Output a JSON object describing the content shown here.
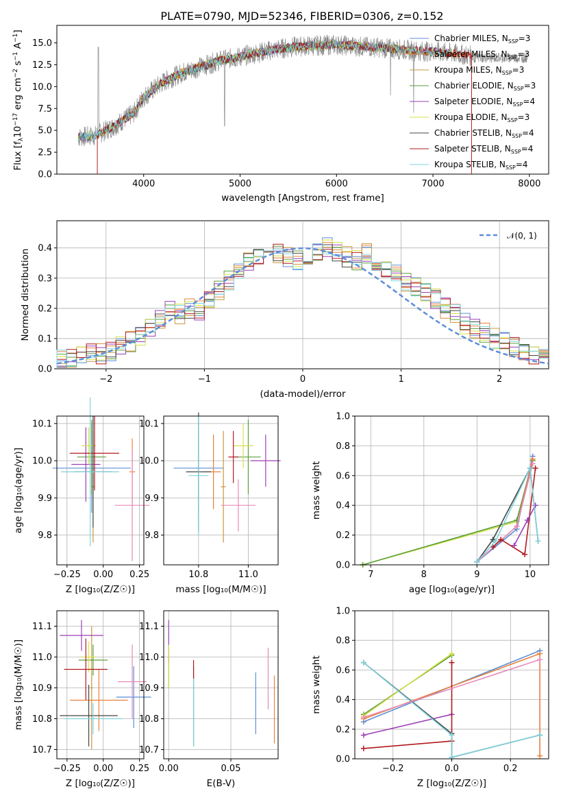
{
  "title": "PLATE=0790, MJD=52346, FIBERID=0306, z=0.152",
  "colors": {
    "c1": "#5b8ed8",
    "c2": "#e8813a",
    "c3": "#c8963c",
    "c4": "#5a9e3c",
    "c5": "#9b3fb5",
    "c6": "#d6e04a",
    "c7": "#444444",
    "c8": "#b0191f",
    "c9": "#7fd3dc",
    "gray": "#888888",
    "grid": "#b0b0b0",
    "pink": "#e68ab8"
  },
  "panels": {
    "spectrum": {
      "xlabel": "wavelength [Angstrom, rest frame]",
      "ylabel_main": "Flux [f",
      "ylabel_sub": "λ",
      "ylabel_rest": "10",
      "ylabel_exp": "−17",
      "ylabel_tail": " erg cm",
      "ylabel_exp2": "−2",
      "ylabel_tail2": " s",
      "ylabel_exp3": "−1",
      "ylabel_tail3": " A",
      "ylabel_exp4": "−1",
      "ylabel_end": "]",
      "xticks": [
        "4000",
        "5000",
        "6000",
        "7000",
        "8000"
      ],
      "yticks": [
        "0.0",
        "2.5",
        "5.0",
        "7.5",
        "10.0",
        "12.5",
        "15.0"
      ]
    },
    "hist": {
      "xlabel": "(data-model)/error",
      "ylabel": "Normed distribution",
      "legend": "𝒩(0, 1)",
      "xticks": [
        "−2",
        "−1",
        "0",
        "1",
        "2"
      ],
      "yticks": [
        "0.0",
        "0.1",
        "0.2",
        "0.3",
        "0.4"
      ]
    },
    "z_age": {
      "xlabel": "Z [log₁₀(Z/Z☉)]",
      "ylabel": "age  [log₁₀(age/yr)]",
      "xticks": [
        "−0.25",
        "0.00",
        "0.25"
      ],
      "yticks": [
        "9.8",
        "9.9",
        "10.0",
        "10.1"
      ]
    },
    "mass_age": {
      "xlabel": "mass [log₁₀(M/M☉)]",
      "xticks": [
        "10.8",
        "11.0"
      ],
      "yticks": [
        "9.8",
        "9.9",
        "10.0",
        "10.1"
      ]
    },
    "age_weight": {
      "xlabel": "age  [log₁₀(age/yr)]",
      "ylabel": "mass weight",
      "xticks": [
        "7",
        "8",
        "9",
        "10"
      ],
      "yticks": [
        "0.0",
        "0.2",
        "0.4",
        "0.6",
        "0.8",
        "1.0"
      ]
    },
    "z_mass": {
      "xlabel": "Z [log₁₀(Z/Z☉)]",
      "ylabel": "mass [log₁₀(M/M☉)]",
      "xticks": [
        "−0.25",
        "0.00",
        "0.25"
      ],
      "yticks": [
        "10.7",
        "10.8",
        "10.9",
        "11.0",
        "11.1"
      ]
    },
    "ebv_mass": {
      "xlabel": "E(B-V)",
      "xticks": [
        "0.00",
        "0.05"
      ],
      "yticks": [
        "10.7",
        "10.8",
        "10.9",
        "11.0",
        "11.1"
      ]
    },
    "z_weight": {
      "xlabel": "Z [log₁₀(Z/Z☉)]",
      "ylabel": "mass weight",
      "xticks": [
        "−0.2",
        "0.0",
        "0.2"
      ],
      "yticks": [
        "0.0",
        "0.2",
        "0.4",
        "0.6",
        "0.8",
        "1.0"
      ]
    }
  },
  "legend_models": [
    {
      "name": "Chabrier MILES, N",
      "nssp": "3",
      "color": "c1"
    },
    {
      "name": "Salpeter MILES, N",
      "nssp": "3",
      "color": "c2"
    },
    {
      "name": "Kroupa MILES, N",
      "nssp": "3",
      "color": "c3"
    },
    {
      "name": "Chabrier ELODIE, N",
      "nssp": "3",
      "color": "c4"
    },
    {
      "name": "Salpeter ELODIE, N",
      "nssp": "4",
      "color": "c5"
    },
    {
      "name": "Kroupa ELODIE, N",
      "nssp": "3",
      "color": "c6"
    },
    {
      "name": "Chabrier STELIB, N",
      "nssp": "4",
      "color": "c7"
    },
    {
      "name": "Salpeter STELIB, N",
      "nssp": "4",
      "color": "c8"
    },
    {
      "name": "Kroupa STELIB, N",
      "nssp": "4",
      "color": "c9"
    }
  ],
  "legend_sub": "SSP",
  "chart_data": [
    {
      "type": "line",
      "id": "spectrum",
      "xlim": [
        3100,
        8200
      ],
      "ylim": [
        0,
        17
      ],
      "continuum_x": [
        3300,
        3500,
        3700,
        3900,
        4000,
        4200,
        4400,
        4600,
        4800,
        5000,
        5200,
        5400,
        5600,
        5800,
        6000,
        6200,
        6400,
        6600,
        6800,
        7000,
        7200,
        7400
      ],
      "continuum_y": [
        4.2,
        4.4,
        5.5,
        7.0,
        8.8,
        10.5,
        11.6,
        12.3,
        13.0,
        13.4,
        13.9,
        14.3,
        14.6,
        14.7,
        14.8,
        14.6,
        14.5,
        14.3,
        14.1,
        14.0,
        13.8,
        13.5
      ]
    },
    {
      "type": "histogram",
      "id": "residuals",
      "bin_width": 0.1,
      "x_start": -2.5,
      "counts": [
        0.03,
        0.03,
        0.04,
        0.05,
        0.05,
        0.06,
        0.08,
        0.09,
        0.11,
        0.13,
        0.16,
        0.2,
        0.18,
        0.2,
        0.19,
        0.22,
        0.26,
        0.29,
        0.33,
        0.36,
        0.37,
        0.39,
        0.38,
        0.37,
        0.36,
        0.38,
        0.39,
        0.4,
        0.39,
        0.37,
        0.36,
        0.38,
        0.35,
        0.33,
        0.31,
        0.29,
        0.27,
        0.25,
        0.23,
        0.2,
        0.18,
        0.15,
        0.13,
        0.12,
        0.1,
        0.09,
        0.07,
        0.06,
        0.05,
        0.04
      ],
      "normal_curve_label": "𝒩(0, 1)"
    },
    {
      "type": "scatter",
      "id": "age_vs_weight",
      "series": [
        {
          "name": "Chabrier MILES",
          "x": [
            9.0,
            9.75,
            10.05
          ],
          "y": [
            0.02,
            0.24,
            0.73
          ]
        },
        {
          "name": "Salpeter STELIB",
          "x": [
            9.3,
            9.45,
            9.9,
            10.1
          ],
          "y": [
            0.12,
            0.17,
            0.07,
            0.65
          ]
        },
        {
          "name": "Salpeter ELODIE",
          "x": [
            9.7,
            9.95,
            10.1
          ],
          "y": [
            0.13,
            0.3,
            0.4
          ]
        },
        {
          "name": "Kroupa ELODIE",
          "x": [
            6.85,
            9.75,
            10.05
          ],
          "y": [
            0.0,
            0.29,
            0.71
          ]
        },
        {
          "name": "Kroupa STELIB",
          "x": [
            9.0,
            10.0,
            10.15
          ],
          "y": [
            0.02,
            0.65,
            0.16
          ]
        }
      ]
    },
    {
      "type": "scatter",
      "id": "z_vs_weight",
      "series": [
        {
          "name": "Chabrier MILES",
          "x": [
            -0.3,
            0.3
          ],
          "y": [
            0.25,
            0.73
          ]
        },
        {
          "name": "Salpeter MILES",
          "x": [
            -0.3,
            0.3,
            0.3
          ],
          "y": [
            0.27,
            0.71,
            0.02
          ]
        },
        {
          "name": "Chabrier ELODIE",
          "x": [
            -0.3,
            0.0
          ],
          "y": [
            0.3,
            0.7
          ]
        },
        {
          "name": "Kroupa ELODIE",
          "x": [
            -0.3,
            0.0
          ],
          "y": [
            0.29,
            0.71
          ]
        },
        {
          "name": "Salpeter ELODIE",
          "x": [
            -0.3,
            0.0
          ],
          "y": [
            0.16,
            0.3
          ]
        },
        {
          "name": "Chabrier STELIB",
          "x": [
            -0.3,
            0.0,
            0.0,
            0.3
          ],
          "y": [
            0.65,
            0.17,
            0.01,
            0.16
          ]
        },
        {
          "name": "Salpeter STELIB",
          "x": [
            -0.3,
            0.0,
            0.0
          ],
          "y": [
            0.07,
            0.12,
            0.65
          ]
        },
        {
          "name": "Kroupa STELIB",
          "x": [
            -0.3,
            0.0,
            0.0,
            0.3
          ],
          "y": [
            0.65,
            0.16,
            0.01,
            0.16
          ]
        },
        {
          "name": "Kroupa MILES",
          "x": [
            -0.3,
            0.3
          ],
          "y": [
            0.28,
            0.67
          ]
        }
      ]
    }
  ]
}
